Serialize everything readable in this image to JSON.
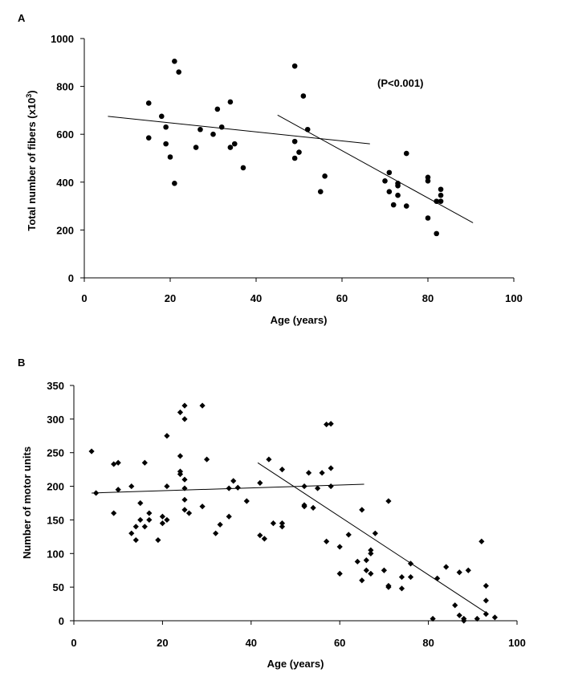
{
  "chart_data": [
    {
      "type": "scatter",
      "panel_label": "A",
      "xlabel": "Age (years)",
      "ylabel": "Total number of fibers (x10",
      "ylabel_sup": "3",
      "ylabel_end": ")",
      "annotation": "(P<0.001)",
      "xlim": [
        0,
        100
      ],
      "ylim": [
        0,
        1000
      ],
      "xticks": [
        0,
        20,
        40,
        60,
        80,
        100
      ],
      "yticks": [
        0,
        200,
        400,
        600,
        800,
        1000
      ],
      "marker": "circle",
      "points": [
        [
          15,
          730
        ],
        [
          15,
          585
        ],
        [
          18,
          675
        ],
        [
          19,
          630
        ],
        [
          19,
          560
        ],
        [
          20,
          505
        ],
        [
          21,
          395
        ],
        [
          21,
          905
        ],
        [
          22,
          860
        ],
        [
          26,
          545
        ],
        [
          27,
          620
        ],
        [
          30,
          600
        ],
        [
          31,
          705
        ],
        [
          32,
          630
        ],
        [
          34,
          545
        ],
        [
          34,
          735
        ],
        [
          35,
          560
        ],
        [
          37,
          460
        ],
        [
          49,
          885
        ],
        [
          49,
          500
        ],
        [
          49,
          570
        ],
        [
          50,
          525
        ],
        [
          51,
          760
        ],
        [
          52,
          620
        ],
        [
          55,
          360
        ],
        [
          56,
          425
        ],
        [
          70,
          405
        ],
        [
          71,
          440
        ],
        [
          71,
          360
        ],
        [
          72,
          305
        ],
        [
          73,
          385
        ],
        [
          73,
          395
        ],
        [
          73,
          345
        ],
        [
          75,
          300
        ],
        [
          75,
          520
        ],
        [
          80,
          250
        ],
        [
          80,
          405
        ],
        [
          80,
          420
        ],
        [
          82,
          185
        ],
        [
          82,
          320
        ],
        [
          83,
          320
        ],
        [
          83,
          345
        ],
        [
          83,
          370
        ]
      ],
      "fit_lines": [
        {
          "x": [
            5.5,
            66.5
          ],
          "y": [
            675,
            560
          ]
        },
        {
          "x": [
            45,
            90.5
          ],
          "y": [
            680,
            230
          ]
        }
      ]
    },
    {
      "type": "scatter",
      "panel_label": "B",
      "xlabel": "Age (years)",
      "ylabel": "Number of motor units",
      "xlim": [
        0,
        100
      ],
      "ylim": [
        0,
        350
      ],
      "xticks": [
        0,
        20,
        40,
        60,
        80,
        100
      ],
      "yticks": [
        0,
        50,
        100,
        150,
        200,
        250,
        300,
        350
      ],
      "marker": "diamond",
      "points": [
        [
          4,
          252
        ],
        [
          5,
          190
        ],
        [
          9,
          233
        ],
        [
          9,
          160
        ],
        [
          10,
          235
        ],
        [
          10,
          195
        ],
        [
          13,
          200
        ],
        [
          13,
          130
        ],
        [
          14,
          140
        ],
        [
          14,
          120
        ],
        [
          15,
          175
        ],
        [
          15,
          150
        ],
        [
          16,
          235
        ],
        [
          16,
          140
        ],
        [
          17,
          160
        ],
        [
          17,
          150
        ],
        [
          19,
          120
        ],
        [
          20,
          145
        ],
        [
          20,
          155
        ],
        [
          21,
          275
        ],
        [
          21,
          200
        ],
        [
          21,
          150
        ],
        [
          24,
          310
        ],
        [
          24,
          245
        ],
        [
          24,
          222
        ],
        [
          24,
          218
        ],
        [
          25,
          320
        ],
        [
          25,
          300
        ],
        [
          25,
          210
        ],
        [
          25,
          197
        ],
        [
          25,
          180
        ],
        [
          25,
          165
        ],
        [
          26,
          160
        ],
        [
          29,
          320
        ],
        [
          29,
          170
        ],
        [
          30,
          240
        ],
        [
          32,
          130
        ],
        [
          33,
          143
        ],
        [
          35,
          197
        ],
        [
          35,
          155
        ],
        [
          36,
          208
        ],
        [
          37,
          198
        ],
        [
          39,
          178
        ],
        [
          42,
          205
        ],
        [
          42,
          127
        ],
        [
          43,
          122
        ],
        [
          44,
          240
        ],
        [
          45,
          145
        ],
        [
          47,
          225
        ],
        [
          47,
          145
        ],
        [
          47,
          140
        ],
        [
          52,
          200
        ],
        [
          52,
          172
        ],
        [
          52,
          170
        ],
        [
          53,
          220
        ],
        [
          54,
          168
        ],
        [
          55,
          197
        ],
        [
          56,
          220
        ],
        [
          57,
          292
        ],
        [
          57,
          118
        ],
        [
          58,
          293
        ],
        [
          58,
          227
        ],
        [
          58,
          200
        ],
        [
          60,
          110
        ],
        [
          60,
          70
        ],
        [
          62,
          128
        ],
        [
          64,
          88
        ],
        [
          65,
          165
        ],
        [
          65,
          60
        ],
        [
          66,
          90
        ],
        [
          66,
          75
        ],
        [
          67,
          105
        ],
        [
          67,
          100
        ],
        [
          67,
          70
        ],
        [
          68,
          130
        ],
        [
          70,
          75
        ],
        [
          71,
          178
        ],
        [
          71,
          52
        ],
        [
          71,
          50
        ],
        [
          74,
          65
        ],
        [
          74,
          48
        ],
        [
          76,
          85
        ],
        [
          76,
          65
        ],
        [
          81,
          3
        ],
        [
          82,
          63
        ],
        [
          84,
          80
        ],
        [
          86,
          23
        ],
        [
          87,
          72
        ],
        [
          87,
          8
        ],
        [
          88,
          3
        ],
        [
          88,
          0
        ],
        [
          89,
          75
        ],
        [
          91,
          3
        ],
        [
          92,
          118
        ],
        [
          93,
          52
        ],
        [
          93,
          30
        ],
        [
          93,
          10
        ],
        [
          95,
          5
        ]
      ],
      "fit_lines": [
        {
          "x": [
            4,
            65.5
          ],
          "y": [
            190,
            203
          ]
        },
        {
          "x": [
            41.5,
            93
          ],
          "y": [
            235,
            12
          ]
        }
      ]
    }
  ]
}
